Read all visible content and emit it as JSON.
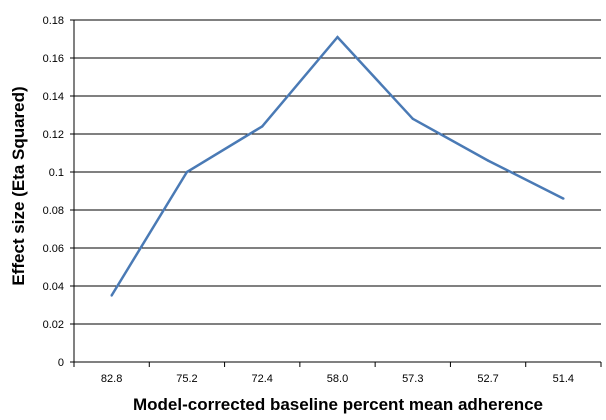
{
  "chart_data": {
    "type": "line",
    "title": "",
    "xlabel": "Model-corrected baseline percent mean adherence",
    "ylabel": "Effect size (Eta Squared)",
    "categories": [
      "82.8",
      "75.2",
      "72.4",
      "58.0",
      "57.3",
      "52.7",
      "51.4"
    ],
    "y_tick_labels": [
      "0",
      "0.02",
      "0.04",
      "0.06",
      "0.08",
      "0.1",
      "0.12",
      "0.14",
      "0.16",
      "0.18"
    ],
    "ylim": [
      0,
      0.18
    ],
    "grid": "horizontal",
    "legend": "none",
    "series": [
      {
        "values": [
          0.035,
          0.1,
          0.124,
          0.171,
          0.128,
          0.106,
          0.086
        ],
        "color": "#4a7ab5"
      }
    ]
  }
}
